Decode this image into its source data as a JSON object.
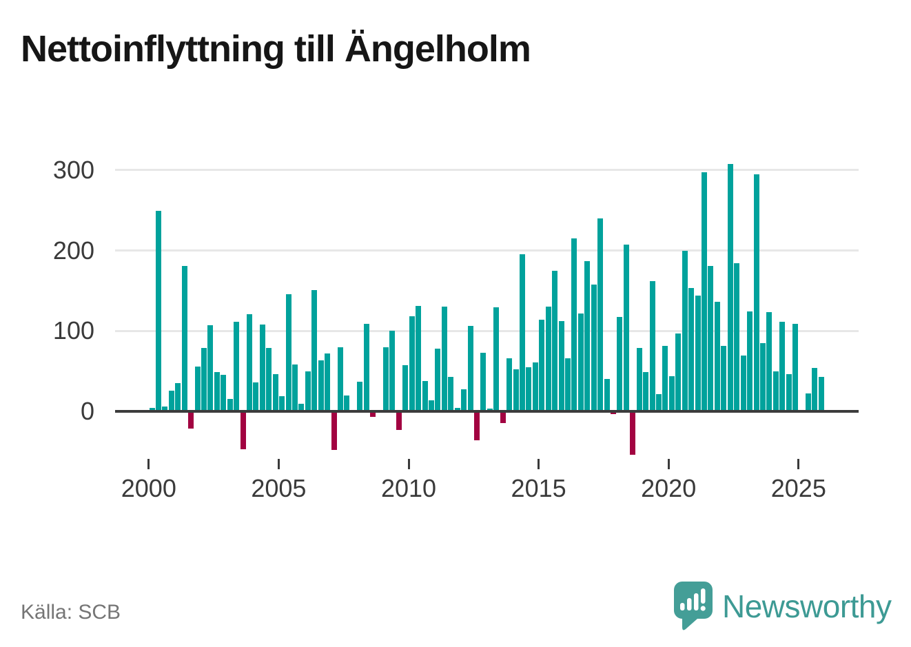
{
  "title": "Nettoinflyttning till Ängelholm",
  "source": "Källa: SCB",
  "brand": {
    "name": "Newsworthy",
    "logo_icon": "speech-bubble-bar-chart-icon"
  },
  "colors": {
    "positive": "#00a29c",
    "negative": "#a20341",
    "grid": "#e7e7e7",
    "axis": "#3c3c3c",
    "tick_text": "#3a3a3a",
    "title_text": "#161616",
    "source_text": "#757575",
    "brand_teal": "#3d9a94",
    "logo_bubble": "#449e97",
    "background": "#ffffff"
  },
  "chart_data": {
    "type": "bar",
    "title": "Nettoinflyttning till Ängelholm",
    "frequency": "quarterly",
    "start_period": "2000 Q1",
    "end_period": "2025 Q4",
    "values": [
      4,
      249,
      6,
      26,
      35,
      181,
      -20,
      56,
      79,
      107,
      49,
      45,
      15,
      111,
      -45,
      121,
      36,
      108,
      79,
      46,
      19,
      146,
      58,
      9,
      50,
      151,
      63,
      72,
      -46,
      80,
      20,
      0,
      37,
      109,
      -5,
      0,
      80,
      100,
      -21,
      57,
      118,
      131,
      38,
      14,
      78,
      130,
      43,
      4,
      27,
      106,
      -34,
      73,
      3,
      129,
      -13,
      66,
      52,
      195,
      55,
      61,
      114,
      130,
      175,
      112,
      66,
      215,
      122,
      187,
      158,
      240,
      40,
      -2,
      117,
      207,
      -52,
      79,
      49,
      162,
      21,
      81,
      44,
      97,
      200,
      153,
      144,
      297,
      181,
      136,
      81,
      308,
      184,
      69,
      124,
      295,
      85,
      123,
      50,
      111,
      46,
      109,
      0,
      22,
      54,
      43
    ],
    "yticks": [
      0,
      100,
      200,
      300
    ],
    "xticks": [
      2000,
      2005,
      2010,
      2015,
      2020,
      2025
    ],
    "ylim": [
      -60,
      320
    ],
    "grid": "horizontal-only",
    "legend": "none",
    "xlabel": "",
    "ylabel": ""
  }
}
